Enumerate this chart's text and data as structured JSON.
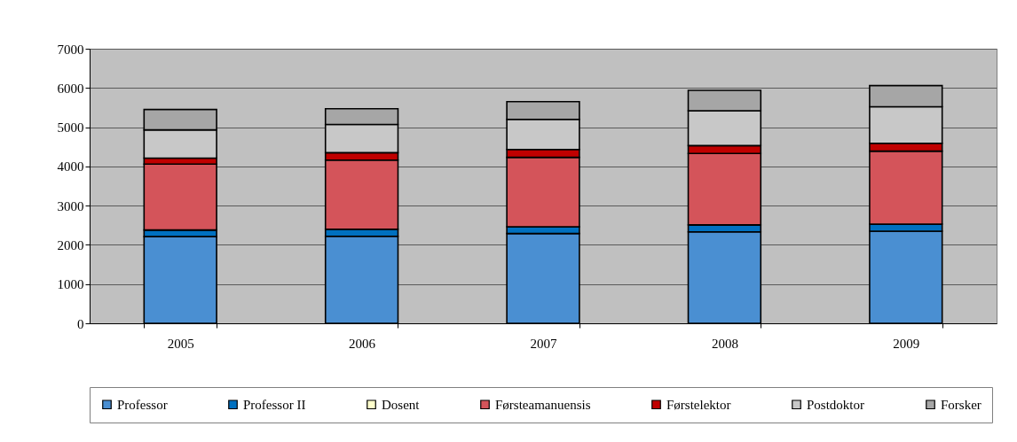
{
  "chart_data": {
    "type": "bar",
    "stacked": true,
    "categories": [
      "2005",
      "2006",
      "2007",
      "2008",
      "2009"
    ],
    "series": [
      {
        "name": "Professor",
        "color": "#4a8fd2",
        "values": [
          2210,
          2220,
          2290,
          2330,
          2350
        ]
      },
      {
        "name": "Professor II",
        "color": "#0070c0",
        "values": [
          170,
          180,
          170,
          180,
          180
        ]
      },
      {
        "name": "Dosent",
        "color": "#ffffcc",
        "values": [
          0,
          0,
          0,
          0,
          0
        ]
      },
      {
        "name": "Førsteamanuensis",
        "color": "#d4545a",
        "values": [
          1680,
          1760,
          1770,
          1820,
          1860
        ]
      },
      {
        "name": "Førstelektor",
        "color": "#c00000",
        "values": [
          150,
          190,
          200,
          200,
          200
        ]
      },
      {
        "name": "Postdoktor",
        "color": "#c8c8c8",
        "values": [
          720,
          720,
          770,
          890,
          930
        ]
      },
      {
        "name": "Forsker",
        "color": "#a6a6a6",
        "values": [
          520,
          400,
          450,
          520,
          540
        ]
      }
    ],
    "ylim": [
      0,
      7000
    ],
    "yticks": [
      0,
      1000,
      2000,
      3000,
      4000,
      5000,
      6000,
      7000
    ],
    "grid": "y",
    "legend": "bottom"
  }
}
